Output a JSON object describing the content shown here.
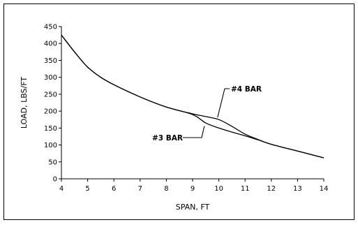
{
  "chart_data": {
    "type": "line",
    "xlabel": "SPAN, FT",
    "ylabel": "LOAD, LBS/FT",
    "xlim": [
      4,
      14
    ],
    "ylim": [
      0,
      450
    ],
    "x_ticks": [
      "4",
      "5",
      "6",
      "7",
      "8",
      "9",
      "10",
      "11",
      "12",
      "13",
      "14"
    ],
    "y_ticks": [
      "0",
      "50",
      "100",
      "150",
      "200",
      "250",
      "300",
      "350",
      "400",
      "450"
    ],
    "grid": false,
    "series": [
      {
        "name": "#3 BAR",
        "x": [
          4,
          4.5,
          5,
          5.5,
          6,
          7,
          8,
          9,
          9.5,
          10,
          10.5,
          11,
          11.5,
          12,
          13,
          14
        ],
        "y": [
          425,
          375,
          330,
          300,
          278,
          242,
          212,
          190,
          165,
          150,
          138,
          127,
          115,
          102,
          82,
          62
        ]
      },
      {
        "name": "#4 BAR",
        "x": [
          4,
          4.5,
          5,
          5.5,
          6,
          7,
          8,
          9,
          9.5,
          10,
          10.5,
          11,
          11.5,
          12,
          13,
          14
        ],
        "y": [
          425,
          375,
          330,
          300,
          278,
          242,
          212,
          192,
          184,
          175,
          155,
          132,
          116,
          102,
          82,
          62
        ]
      }
    ],
    "annotations": [
      {
        "text": "#4 BAR",
        "target_series": "#4 BAR",
        "target_x": 9.95,
        "target_y": 175
      },
      {
        "text": "#3 BAR",
        "target_series": "#3 BAR",
        "target_x": 9.5,
        "target_y": 160
      }
    ],
    "colors": {
      "line": "#000000",
      "frame": "#000000",
      "background": "#ffffff"
    }
  }
}
